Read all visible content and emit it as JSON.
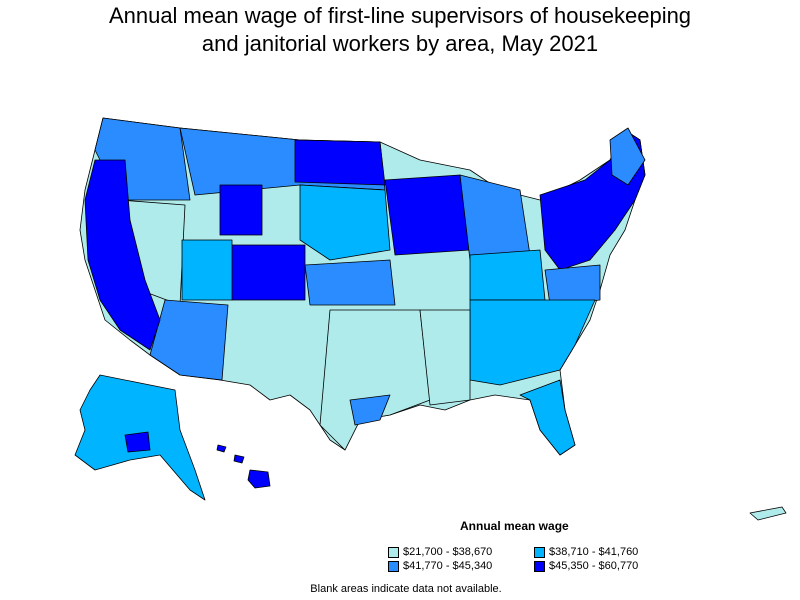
{
  "title_line1": "Annual mean wage of first-line supervisors of housekeeping",
  "title_line2": "and janitorial workers by area, May 2021",
  "legend": {
    "title": "Annual mean wage",
    "items": [
      {
        "label": "$21,700 - $38,670",
        "color": "#b0ebeb"
      },
      {
        "label": "$38,710 - $41,760",
        "color": "#00b4ff"
      },
      {
        "label": "$41,770 - $45,340",
        "color": "#2a8cff"
      },
      {
        "label": "$45,350 - $60,770",
        "color": "#0000ff"
      }
    ]
  },
  "footnote": "Blank areas indicate data not available."
}
